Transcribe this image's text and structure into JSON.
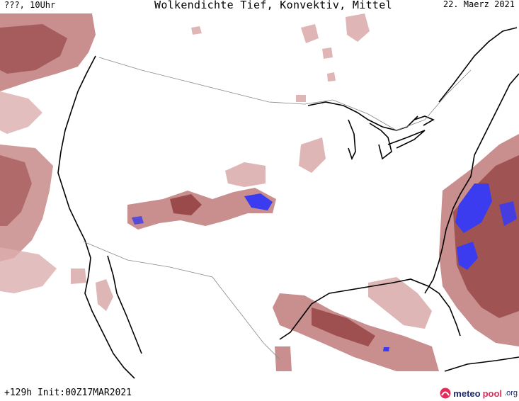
{
  "header": {
    "left": "???, 10Uhr",
    "title": "Wolkendichte   Tief, Konvektiv, Mittel",
    "date": "22. Maerz 2021"
  },
  "footer": {
    "run_info": "+129h Init:00Z17MAR2021"
  },
  "logo": {
    "part1": "meteo",
    "part2": "pool",
    "part3": ".org",
    "icon": "meteopool-logo-icon"
  },
  "colors": {
    "cloud_light": "#dcaeae",
    "cloud_mid": "#c07a7a",
    "cloud_dark": "#8f3a3a",
    "convective": "#3b3bf0",
    "coast": "#000000",
    "border": "#888888"
  }
}
